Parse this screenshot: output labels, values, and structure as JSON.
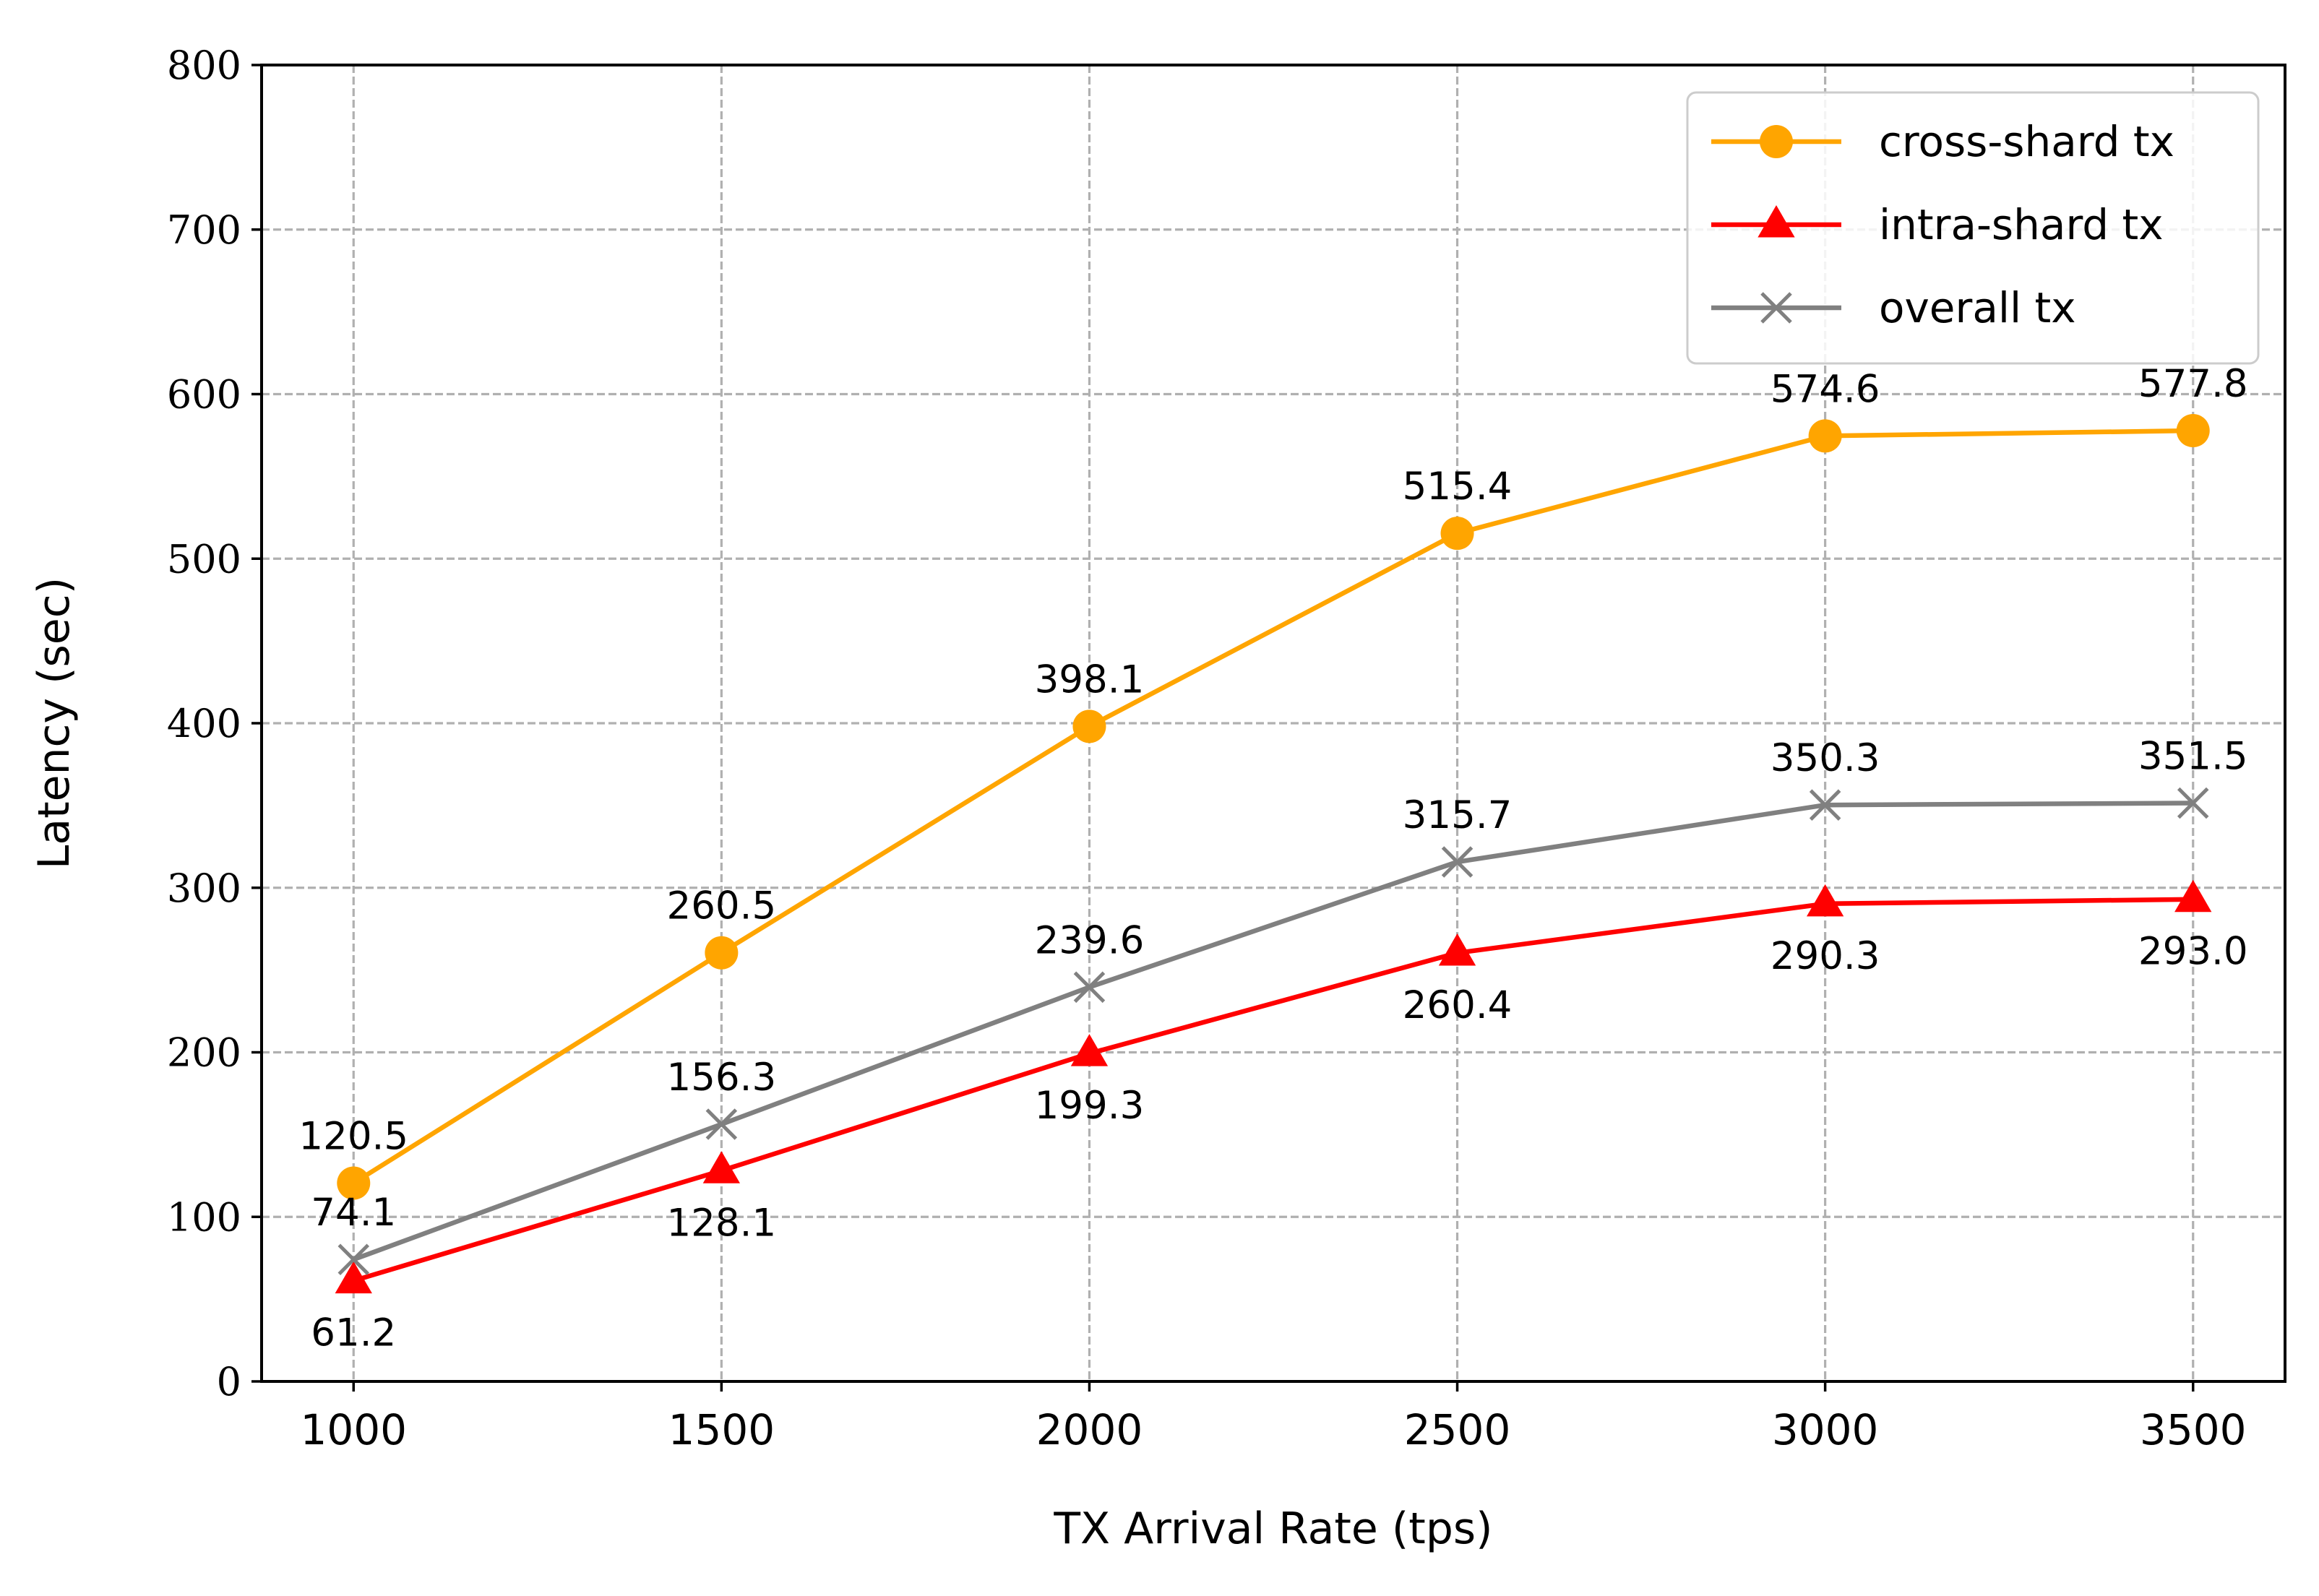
{
  "chart_data": {
    "type": "line",
    "title": "",
    "xlabel": "TX Arrival Rate (tps)",
    "ylabel": "Latency (sec)",
    "x": [
      1000,
      1500,
      2000,
      2500,
      3000,
      3500
    ],
    "xticks": [
      "1000",
      "1500",
      "2000",
      "2500",
      "3000",
      "3500"
    ],
    "xlim": [
      875,
      3625
    ],
    "ylim": [
      0,
      800
    ],
    "yticks": [
      "0",
      "100",
      "200",
      "300",
      "400",
      "500",
      "600",
      "700",
      "800"
    ],
    "grid": true,
    "legend_position": "top-right",
    "series": [
      {
        "name": "cross-shard tx",
        "color": "#FFA500",
        "marker": "circle",
        "values": [
          120.5,
          260.5,
          398.1,
          515.4,
          574.6,
          577.8
        ],
        "labels": [
          "120.5",
          "260.5",
          "398.1",
          "515.4",
          "574.6",
          "577.8"
        ],
        "label_position": "above"
      },
      {
        "name": "intra-shard tx",
        "color": "#FF0000",
        "marker": "triangle",
        "values": [
          61.2,
          128.1,
          199.3,
          260.4,
          290.3,
          293.0
        ],
        "labels": [
          "61.2",
          "128.1",
          "199.3",
          "260.4",
          "290.3",
          "293.0"
        ],
        "label_position": "below"
      },
      {
        "name": "overall tx",
        "color": "#808080",
        "marker": "x",
        "values": [
          74.1,
          156.3,
          239.6,
          315.7,
          350.3,
          351.5
        ],
        "labels": [
          "74.1",
          "156.3",
          "239.6",
          "315.7",
          "350.3",
          "351.5"
        ],
        "label_position": "above"
      }
    ]
  }
}
